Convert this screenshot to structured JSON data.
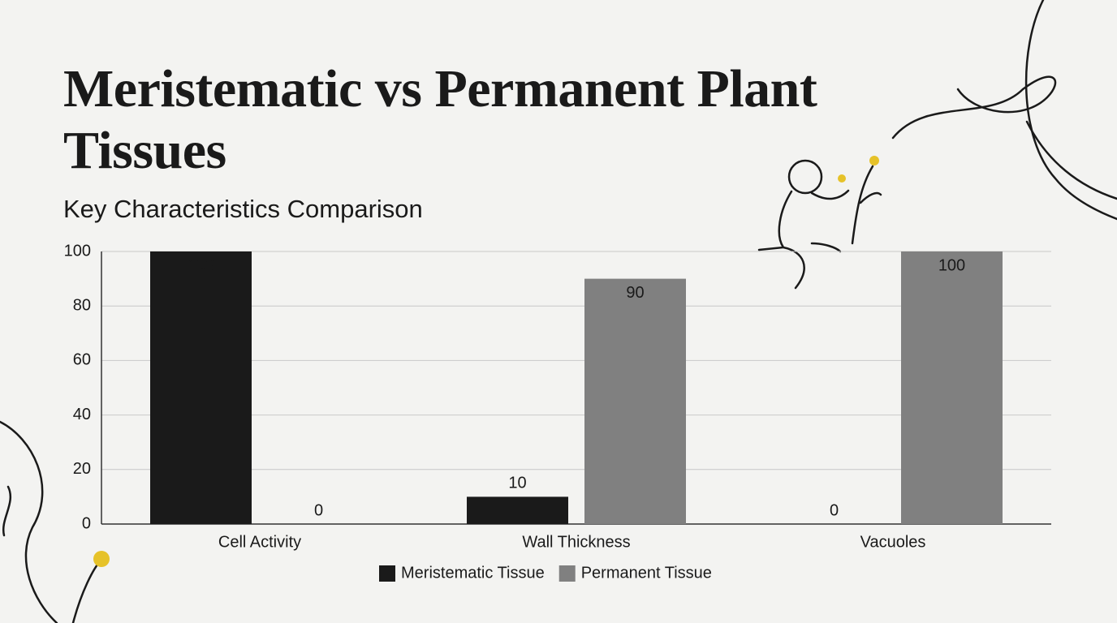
{
  "chart_data": {
    "type": "bar",
    "title": "Meristematic vs Permanent Plant Tissues",
    "subtitle": "Key Characteristics Comparison",
    "categories": [
      "Cell Activity",
      "Wall Thickness",
      "Vacuoles"
    ],
    "series": [
      {
        "name": "Meristematic Tissue",
        "color": "#1a1a1a",
        "values": [
          100,
          10,
          0
        ]
      },
      {
        "name": "Permanent Tissue",
        "color": "#808080",
        "values": [
          0,
          90,
          100
        ]
      }
    ],
    "ylim": [
      0,
      100
    ],
    "yticks": [
      0,
      20,
      40,
      60,
      80,
      100
    ],
    "grid": true,
    "legend": "bottom"
  }
}
